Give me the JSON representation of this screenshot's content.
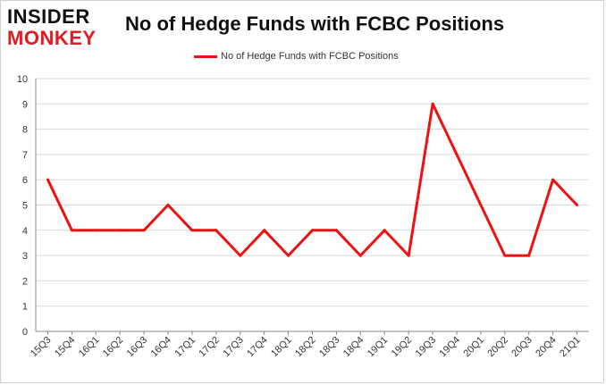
{
  "logo": {
    "line1": "INSIDER",
    "line2": "MONKEY"
  },
  "colors": {
    "series": "#ee1111",
    "grid": "#d9d9d9",
    "axis": "#888888",
    "logo_accent": "#e21a22"
  },
  "chart_data": {
    "type": "line",
    "title": "No of Hedge Funds with FCBC Positions",
    "xlabel": "",
    "ylabel": "",
    "ylim": [
      0,
      10
    ],
    "yticks": [
      0,
      1,
      2,
      3,
      4,
      5,
      6,
      7,
      8,
      9,
      10
    ],
    "grid": true,
    "legend_position": "top-center",
    "categories": [
      "15Q3",
      "15Q4",
      "16Q1",
      "16Q2",
      "16Q3",
      "16Q4",
      "17Q1",
      "17Q2",
      "17Q3",
      "17Q4",
      "18Q1",
      "18Q2",
      "18Q3",
      "18Q4",
      "19Q1",
      "19Q2",
      "19Q3",
      "19Q4",
      "20Q1",
      "20Q2",
      "20Q3",
      "20Q4",
      "21Q1"
    ],
    "series": [
      {
        "name": "No of Hedge Funds with FCBC Positions",
        "color": "#ee1111",
        "values": [
          6,
          4,
          4,
          4,
          4,
          5,
          4,
          4,
          3,
          4,
          3,
          4,
          4,
          3,
          4,
          3,
          9,
          7,
          5,
          3,
          3,
          6,
          5
        ]
      }
    ]
  }
}
